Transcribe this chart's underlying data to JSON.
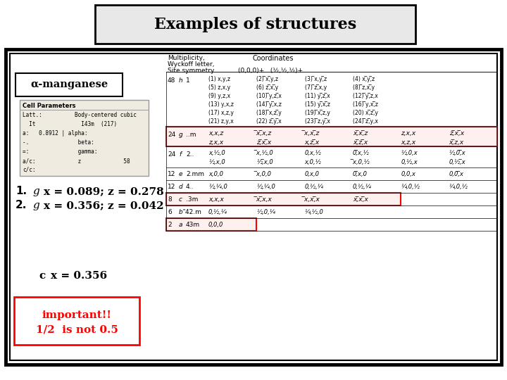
{
  "title": "Examples of structures",
  "title_fontsize": 16,
  "alpha_mn_label": "α-manganese",
  "list_items": [
    {
      "num": "1.",
      "letter": "g",
      "formula": "x = 0.089; z = 0.278"
    },
    {
      "num": "2.",
      "letter": "g",
      "formula": "x = 0.356; z = 0.042"
    }
  ],
  "c_item": {
    "letter": "c",
    "formula": "x = 0.356"
  },
  "important_line1": "important!!",
  "important_line2": "1/2  is not 0.5"
}
